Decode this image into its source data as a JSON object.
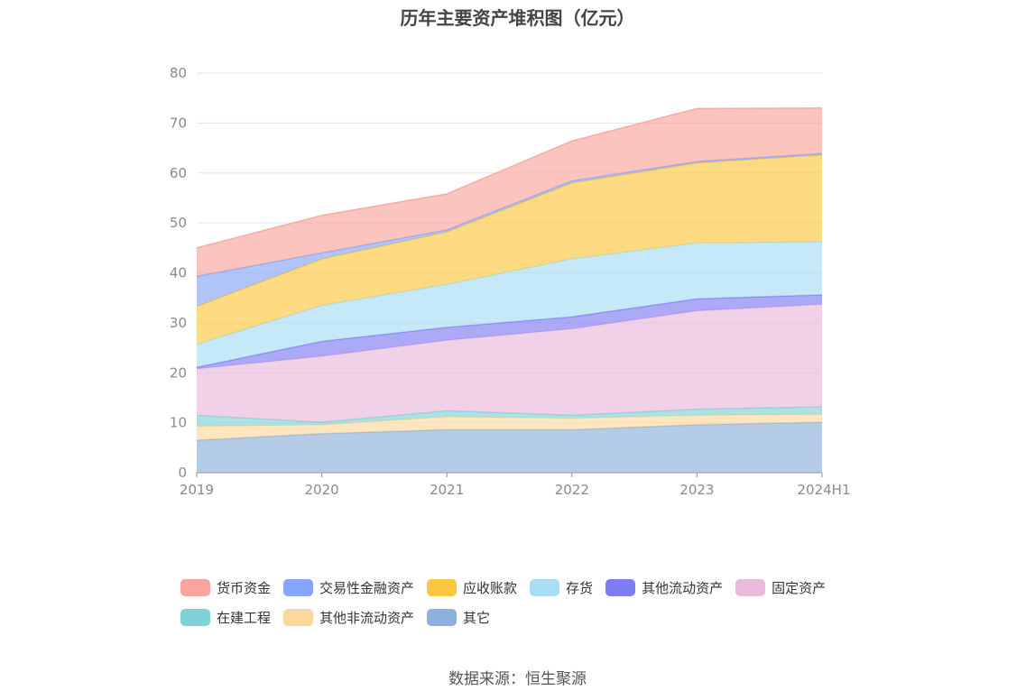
{
  "chart_data": {
    "type": "area",
    "stacked": true,
    "title": "历年主要资产堆积图（亿元）",
    "source": "数据来源：恒生聚源",
    "categories": [
      "2019",
      "2020",
      "2021",
      "2022",
      "2023",
      "2024H1"
    ],
    "ylim": [
      0,
      80
    ],
    "yticks": [
      "0",
      "10",
      "20",
      "30",
      "40",
      "50",
      "60",
      "70",
      "80"
    ],
    "grid": true,
    "legend_position": "bottom",
    "series": [
      {
        "name": "其它",
        "color": "#8eb0dc",
        "values": [
          6.5,
          7.8,
          8.6,
          8.6,
          9.6,
          10.1
        ]
      },
      {
        "name": "其他非流动资产",
        "color": "#fdd89e",
        "values": [
          2.8,
          1.8,
          2.6,
          2.3,
          1.9,
          1.6
        ]
      },
      {
        "name": "在建工程",
        "color": "#7fd3d6",
        "values": [
          2.2,
          0.5,
          1.2,
          0.6,
          1.2,
          1.5
        ]
      },
      {
        "name": "固定资产",
        "color": "#e9b9db",
        "values": [
          9.3,
          13.2,
          14.1,
          17.3,
          19.7,
          20.5
        ]
      },
      {
        "name": "其他流动资产",
        "color": "#7f7cf2",
        "values": [
          0.3,
          3.0,
          2.6,
          2.4,
          2.4,
          1.9
        ]
      },
      {
        "name": "存货",
        "color": "#a8ddf6",
        "values": [
          4.6,
          7.2,
          8.6,
          11.6,
          11.2,
          10.6
        ]
      },
      {
        "name": "应收账款",
        "color": "#fdc83f",
        "values": [
          7.6,
          9.3,
          10.5,
          15.2,
          16.0,
          17.4
        ]
      },
      {
        "name": "交易性金融资产",
        "color": "#86a7f9",
        "values": [
          6.0,
          1.2,
          0.4,
          0.4,
          0.3,
          0.3
        ]
      },
      {
        "name": "货币资金",
        "color": "#f9a49c",
        "values": [
          5.7,
          7.5,
          7.2,
          8.0,
          10.6,
          9.1
        ]
      }
    ]
  },
  "legend_rows": [
    [
      {
        "label": "货币资金",
        "color": "#f9a49c"
      },
      {
        "label": "交易性金融资产",
        "color": "#86a7f9"
      },
      {
        "label": "应收账款",
        "color": "#fdc83f"
      },
      {
        "label": "存货",
        "color": "#a8ddf6"
      },
      {
        "label": "其他流动资产",
        "color": "#7f7cf2"
      },
      {
        "label": "固定资产",
        "color": "#e9b9db"
      }
    ],
    [
      {
        "label": "在建工程",
        "color": "#7fd3d6"
      },
      {
        "label": "其他非流动资产",
        "color": "#fdd89e"
      },
      {
        "label": "其它",
        "color": "#8eb0dc"
      }
    ]
  ]
}
